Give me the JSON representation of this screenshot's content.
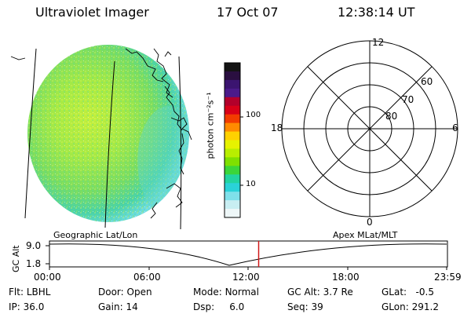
{
  "header": {
    "title": "Ultraviolet Imager",
    "date": "17 Oct 07",
    "time": "12:38:14 UT"
  },
  "colorbar": {
    "label": "photon cm⁻²s⁻¹",
    "ticks": [
      "100",
      "10"
    ],
    "colors": [
      "#141414",
      "#2a0f40",
      "#3b1470",
      "#4b1a8a",
      "#b3002b",
      "#d90018",
      "#f23c00",
      "#ff8a00",
      "#ffd100",
      "#e6f200",
      "#b8ee00",
      "#7fe000",
      "#3bd63a",
      "#22d4a0",
      "#2ad2d8",
      "#7fe0ea",
      "#c8eef2",
      "#eef7f8"
    ]
  },
  "polar": {
    "labels": {
      "top": "12",
      "bottom": "0",
      "left": "18",
      "right": "6",
      "r60": "60",
      "r70": "70",
      "r80": "80"
    }
  },
  "strip": {
    "left_title": "Geographic Lat/Lon",
    "right_title": "Apex MLat/MLT",
    "ylabel": "GC Alt",
    "y_ticks": [
      "9.0",
      "1.8"
    ],
    "x_ticks": [
      "00:00",
      "06:00",
      "12:00",
      "18:00",
      "23:59"
    ],
    "current_time_hours": 12.64
  },
  "info": {
    "row1": {
      "flt_label": "Flt:",
      "flt_value": "LBHL",
      "door_label": "Door:",
      "door_value": "Open",
      "mode_label": "Mode:",
      "mode_value": "Normal",
      "gcalt_label": "GC Alt:",
      "gcalt_value": "3.7 Re",
      "glat_label": "GLat:",
      "glat_value": "-0.5"
    },
    "row2": {
      "ip_label": "IP:",
      "ip_value": "36.0",
      "gain_label": "Gain:",
      "gain_value": "14",
      "dsp_label": "Dsp:",
      "dsp_value": "6.0",
      "seq_label": "Seq:",
      "seq_value": "39",
      "glon_label": "GLon:",
      "glon_value": "291.2"
    }
  },
  "colors": {
    "earth_main": "#8ee05a",
    "earth_bright": "#c8f23c",
    "earth_edge": "#5fd8c8",
    "marker": "#d01818"
  }
}
